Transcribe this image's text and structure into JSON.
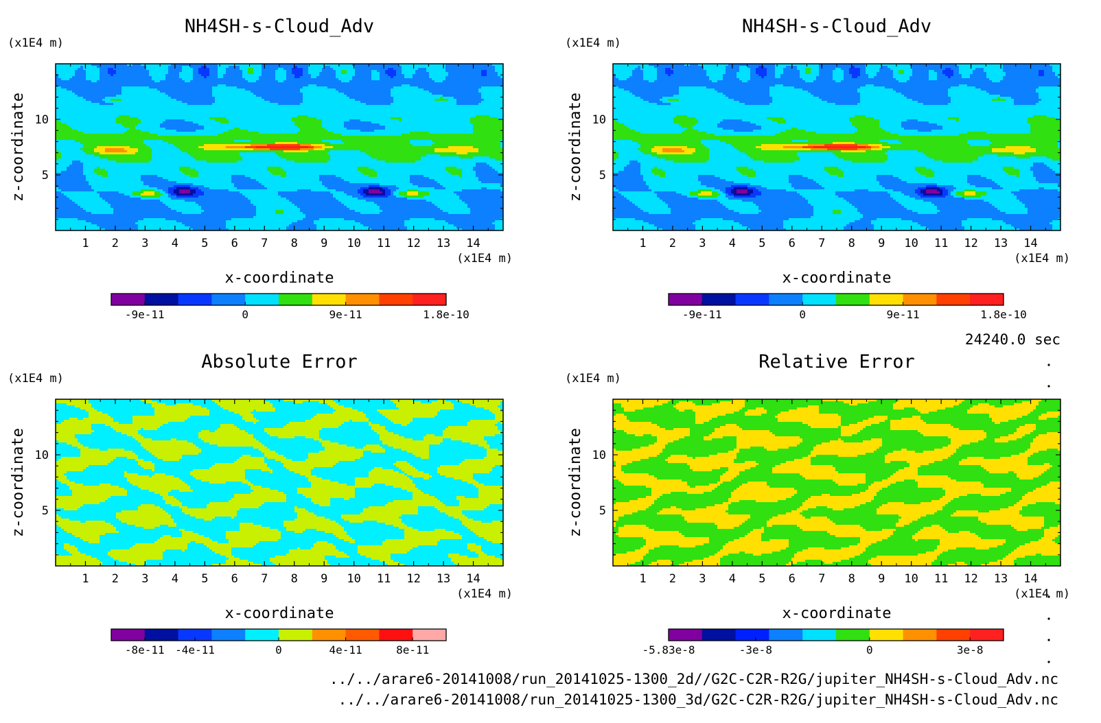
{
  "chart_data": [
    {
      "type": "heatmap",
      "title": "NH4SH-s-Cloud_Adv",
      "xlabel": "x-coordinate",
      "ylabel": "z-coordinate",
      "x_unit": "(x1E4 m)",
      "y_unit": "(x1E4 m)",
      "xticks": [
        1,
        2,
        3,
        4,
        5,
        6,
        7,
        8,
        9,
        10,
        11,
        12,
        13,
        14
      ],
      "yticks": [
        5,
        10
      ],
      "xlim": [
        0,
        15
      ],
      "ylim": [
        0,
        15
      ],
      "field": "symmetric",
      "colors": [
        "#8000a0",
        "#0010a0",
        "#0838ff",
        "#0c80ff",
        "#00e0ff",
        "#30e010",
        "#ffe000",
        "#ff9000",
        "#ff4000",
        "#ff2020"
      ],
      "colorbar_ticks": [
        "-9e-11",
        "0",
        "9e-11",
        "1.8e-10"
      ],
      "colorbar_tick_at": [
        1,
        4,
        7,
        10
      ]
    },
    {
      "type": "heatmap",
      "title": "NH4SH-s-Cloud_Adv",
      "xlabel": "x-coordinate",
      "ylabel": "z-coordinate",
      "x_unit": "(x1E4 m)",
      "y_unit": "(x1E4 m)",
      "xticks": [
        1,
        2,
        3,
        4,
        5,
        6,
        7,
        8,
        9,
        10,
        11,
        12,
        13,
        14
      ],
      "yticks": [
        5,
        10
      ],
      "xlim": [
        0,
        15
      ],
      "ylim": [
        0,
        15
      ],
      "field": "symmetric",
      "colors": [
        "#8000a0",
        "#0010a0",
        "#0838ff",
        "#0c80ff",
        "#00e0ff",
        "#30e010",
        "#ffe000",
        "#ff9000",
        "#ff4000",
        "#ff2020"
      ],
      "colorbar_ticks": [
        "-9e-11",
        "0",
        "9e-11",
        "1.8e-10"
      ],
      "colorbar_tick_at": [
        1,
        4,
        7,
        10
      ]
    },
    {
      "type": "heatmap",
      "title": "Absolute Error",
      "xlabel": "x-coordinate",
      "ylabel": "z-coordinate",
      "x_unit": "(x1E4 m)",
      "y_unit": "(x1E4 m)",
      "xticks": [
        1,
        2,
        3,
        4,
        5,
        6,
        7,
        8,
        9,
        10,
        11,
        12,
        13,
        14
      ],
      "yticks": [
        5,
        10
      ],
      "xlim": [
        0,
        15
      ],
      "ylim": [
        0,
        15
      ],
      "field": "abs_error",
      "colors": [
        "#8000a0",
        "#0010a0",
        "#0838ff",
        "#0c80ff",
        "#00f0ff",
        "#c8f000",
        "#ff9000",
        "#ff5a00",
        "#ff1010",
        "#ffa8a8"
      ],
      "colorbar_ticks": [
        "-8e-11",
        "-4e-11",
        "0",
        "4e-11",
        "8e-11"
      ],
      "colorbar_tick_at": [
        1,
        2.5,
        5,
        7,
        9
      ]
    },
    {
      "type": "heatmap",
      "title": "Relative Error",
      "xlabel": "x-coordinate",
      "ylabel": "z-coordinate",
      "x_unit": "(x1E4 m)",
      "y_unit": "(x1E4 m)",
      "xticks": [
        1,
        2,
        3,
        4,
        5,
        6,
        7,
        8,
        9,
        10,
        11,
        12,
        13,
        14
      ],
      "yticks": [
        5,
        10
      ],
      "xlim": [
        0,
        15
      ],
      "ylim": [
        0,
        15
      ],
      "field": "rel_error",
      "colors": [
        "#8000a0",
        "#0010a0",
        "#0020ff",
        "#0c80ff",
        "#00e0ff",
        "#30e010",
        "#ffe000",
        "#ff9000",
        "#ff4000",
        "#ff2020"
      ],
      "colorbar_ticks": [
        "-5.83e-8",
        "-3e-8",
        "0",
        "3e-8"
      ],
      "colorbar_tick_at": [
        0,
        2.6,
        6,
        9
      ]
    }
  ],
  "time_label": "24240.0 sec",
  "file_paths": [
    "../../arare6-20141008/run_20141025-1300_2d//G2C-C2R-R2G/jupiter_NH4SH-s-Cloud_Adv.nc",
    "../../arare6-20141008/run_20141025-1300_3d/G2C-C2R-R2G/jupiter_NH4SH-s-Cloud_Adv.nc"
  ]
}
